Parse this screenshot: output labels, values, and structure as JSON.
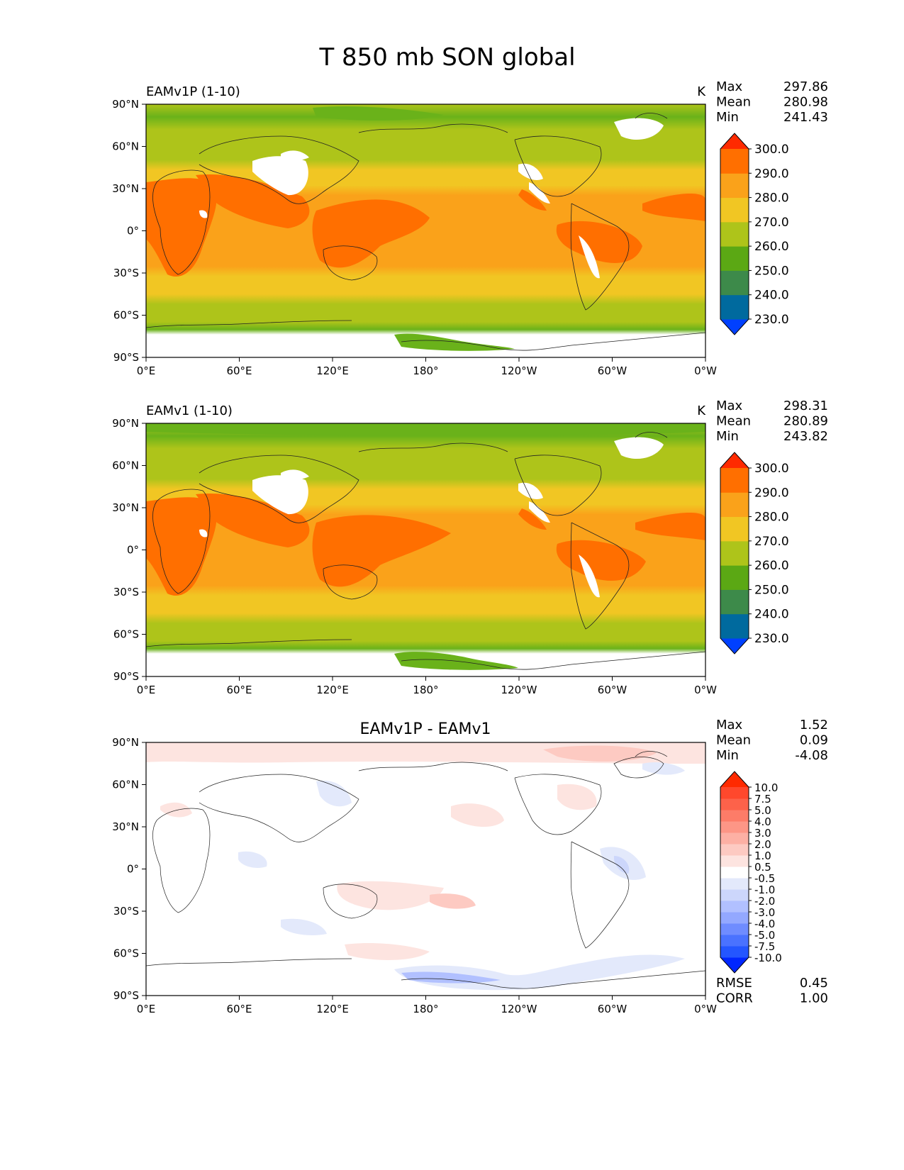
{
  "figure": {
    "title": "T 850 mb SON global"
  },
  "axes": {
    "x_ticks": [
      "0°E",
      "60°E",
      "120°E",
      "180°",
      "120°W",
      "60°W",
      "0°W"
    ],
    "y_ticks": [
      "90°N",
      "60°N",
      "30°N",
      "0°",
      "30°S",
      "60°S",
      "90°S"
    ]
  },
  "panels": [
    {
      "title_left": "EAMv1P (1-10)",
      "title_center": "",
      "units": "K",
      "stats": [
        {
          "label": "Max",
          "value": "297.86"
        },
        {
          "label": "Mean",
          "value": "280.98"
        },
        {
          "label": "Min",
          "value": "241.43"
        }
      ],
      "colorbar": {
        "colors": [
          "#0040ff",
          "#006a9e",
          "#3d8a4a",
          "#5ba814",
          "#aec41a",
          "#f1c623",
          "#faa21a",
          "#ff6f00",
          "#ff2a00"
        ],
        "labels": [
          "230.0",
          "240.0",
          "250.0",
          "260.0",
          "270.0",
          "280.0",
          "290.0",
          "300.0"
        ]
      }
    },
    {
      "title_left": "EAMv1 (1-10)",
      "title_center": "",
      "units": "K",
      "stats": [
        {
          "label": "Max",
          "value": "298.31"
        },
        {
          "label": "Mean",
          "value": "280.89"
        },
        {
          "label": "Min",
          "value": "243.82"
        }
      ],
      "colorbar": {
        "colors": [
          "#0040ff",
          "#006a9e",
          "#3d8a4a",
          "#5ba814",
          "#aec41a",
          "#f1c623",
          "#faa21a",
          "#ff6f00",
          "#ff2a00"
        ],
        "labels": [
          "230.0",
          "240.0",
          "250.0",
          "260.0",
          "270.0",
          "280.0",
          "290.0",
          "300.0"
        ]
      }
    },
    {
      "title_left": "",
      "title_center": "EAMv1P - EAMv1",
      "units": "",
      "stats": [
        {
          "label": "Max",
          "value": "1.52"
        },
        {
          "label": "Mean",
          "value": "0.09"
        },
        {
          "label": "Min",
          "value": "-4.08"
        }
      ],
      "extra_stats": [
        {
          "label": "RMSE",
          "value": "0.45"
        },
        {
          "label": "CORR",
          "value": "1.00"
        }
      ],
      "colorbar": {
        "colors": [
          "#0026ff",
          "#2456ff",
          "#4a72ff",
          "#6f8cff",
          "#93a8ff",
          "#b1c0ff",
          "#ccd6fb",
          "#e3e9fb",
          "#ffffff",
          "#fde4e0",
          "#fdcac2",
          "#fdb0a4",
          "#fd9686",
          "#fd7c68",
          "#fd624a",
          "#ff482c",
          "#ff2a00"
        ],
        "labels": [
          "-10.0",
          "-7.5",
          "-5.0",
          "-4.0",
          "-3.0",
          "-2.0",
          "-1.0",
          "-0.5",
          "0.5",
          "1.0",
          "2.0",
          "3.0",
          "4.0",
          "5.0",
          "7.5",
          "10.0"
        ]
      }
    }
  ]
}
